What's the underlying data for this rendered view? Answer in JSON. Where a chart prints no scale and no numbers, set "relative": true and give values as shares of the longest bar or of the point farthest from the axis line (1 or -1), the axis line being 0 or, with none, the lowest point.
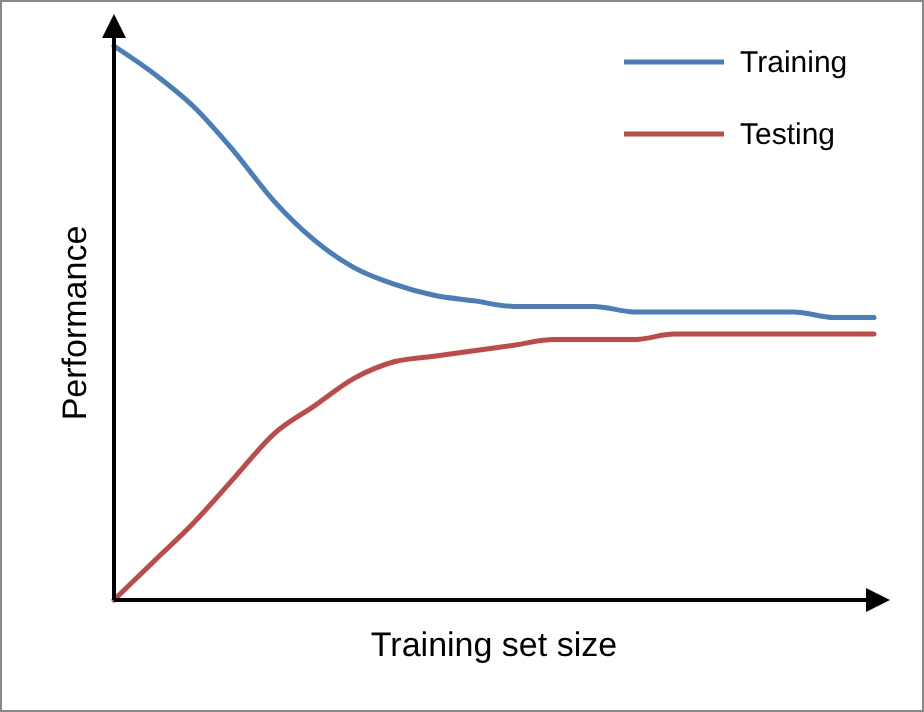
{
  "chart_data": {
    "type": "line",
    "relative": true,
    "xlabel": "Training set size",
    "ylabel": "Performance",
    "legend": "top right",
    "marker": "none",
    "line_style": "solid",
    "categories": [
      null,
      null,
      null,
      null,
      null,
      null,
      null,
      null,
      null,
      null,
      null,
      null,
      null,
      null,
      null,
      null,
      null,
      null,
      null,
      null
    ],
    "series": [
      {
        "name": "Training",
        "color": "#4a7ebb",
        "values": [
          1.0,
          0.95,
          0.89,
          0.81,
          0.72,
          0.65,
          0.6,
          0.57,
          0.55,
          0.54,
          0.53,
          0.53,
          0.53,
          0.52,
          0.52,
          0.52,
          0.52,
          0.52,
          0.51,
          0.51
        ]
      },
      {
        "name": "Testing",
        "color": "#be4b48",
        "values": [
          0,
          0.07,
          0.14,
          0.22,
          0.3,
          0.35,
          0.4,
          0.43,
          0.44,
          0.45,
          0.46,
          0.47,
          0.47,
          0.47,
          0.48,
          0.48,
          0.48,
          0.48,
          0.48,
          0.48
        ]
      }
    ]
  }
}
